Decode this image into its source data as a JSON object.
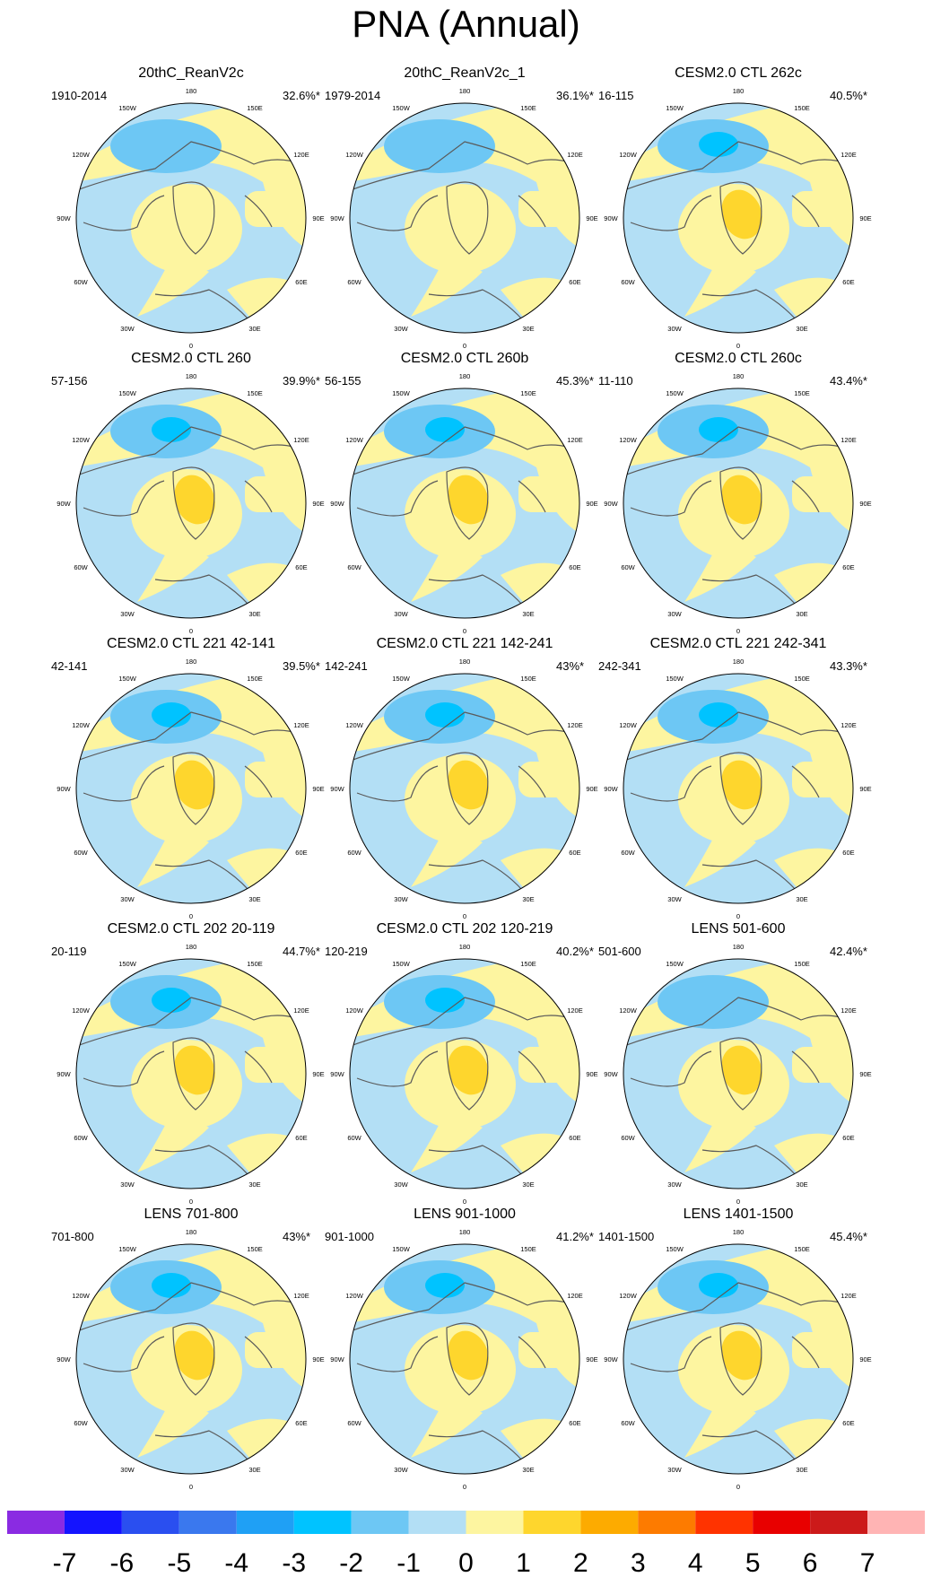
{
  "title": "PNA (Annual)",
  "map": {
    "projection": "north-polar-stereographic",
    "longitude_labels": [
      "180",
      "150E",
      "120E",
      "90E",
      "60E",
      "30E",
      "0",
      "30W",
      "60W",
      "90W",
      "120W",
      "150W"
    ]
  },
  "panels": [
    {
      "title": "20thC_ReanV2c",
      "period": "1910-2014",
      "percent": "32.6%*",
      "low_max": -2,
      "high_max": 1
    },
    {
      "title": "20thC_ReanV2c_1",
      "period": "1979-2014",
      "percent": "36.1%*",
      "low_max": -2,
      "high_max": 1
    },
    {
      "title": "CESM2.0 CTL 262c",
      "period": "16-115",
      "percent": "40.5%*",
      "low_max": -3,
      "high_max": 2
    },
    {
      "title": "CESM2.0 CTL 260",
      "period": "57-156",
      "percent": "39.9%*",
      "low_max": -3,
      "high_max": 2
    },
    {
      "title": "CESM2.0 CTL 260b",
      "period": "56-155",
      "percent": "45.3%*",
      "low_max": -3,
      "high_max": 2
    },
    {
      "title": "CESM2.0 CTL 260c",
      "period": "11-110",
      "percent": "43.4%*",
      "low_max": -3,
      "high_max": 2
    },
    {
      "title": "CESM2.0 CTL 221 42-141",
      "period": "42-141",
      "percent": "39.5%*",
      "low_max": -3,
      "high_max": 2
    },
    {
      "title": "CESM2.0 CTL 221 142-241",
      "period": "142-241",
      "percent": "43%*",
      "low_max": -3,
      "high_max": 2
    },
    {
      "title": "CESM2.0 CTL 221 242-341",
      "period": "242-341",
      "percent": "43.3%*",
      "low_max": -3,
      "high_max": 2
    },
    {
      "title": "CESM2.0 CTL 202 20-119",
      "period": "20-119",
      "percent": "44.7%*",
      "low_max": -3,
      "high_max": 2
    },
    {
      "title": "CESM2.0 CTL 202 120-219",
      "period": "120-219",
      "percent": "40.2%*",
      "low_max": -3,
      "high_max": 2
    },
    {
      "title": "LENS 501-600",
      "period": "501-600",
      "percent": "42.4%*",
      "low_max": -2,
      "high_max": 2
    },
    {
      "title": "LENS 701-800",
      "period": "701-800",
      "percent": "43%*",
      "low_max": -3,
      "high_max": 2
    },
    {
      "title": "LENS 901-1000",
      "period": "901-1000",
      "percent": "41.2%*",
      "low_max": -3,
      "high_max": 2
    },
    {
      "title": "LENS 1401-1500",
      "period": "1401-1500",
      "percent": "45.4%*",
      "low_max": -3,
      "high_max": 2
    }
  ],
  "colorbar": {
    "labels": [
      "-7",
      "-6",
      "-5",
      "-4",
      "-3",
      "-2",
      "-1",
      "0",
      "1",
      "2",
      "3",
      "4",
      "5",
      "6",
      "7"
    ],
    "colors": [
      "#8a2be2",
      "#1414ff",
      "#2a4ff0",
      "#3a78ee",
      "#1fa0f5",
      "#00c3ff",
      "#6dc7f4",
      "#b3dff5",
      "#fdf5a0",
      "#fed62d",
      "#fdab00",
      "#fd7b00",
      "#ff3300",
      "#e80000",
      "#cc1a1a",
      "#ffb4b4"
    ]
  }
}
